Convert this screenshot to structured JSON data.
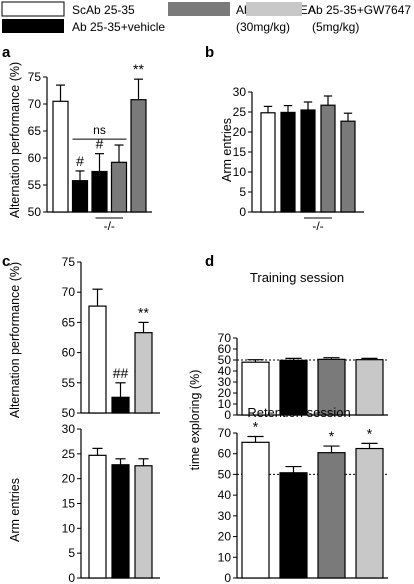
{
  "legend": [
    {
      "label": "ScAb 25-35",
      "color": "#ffffff"
    },
    {
      "label": "Ab 25-35+vehicle",
      "color": "#000000"
    },
    {
      "label": "Ab 25-35+PEA",
      "sublabel": "(30mg/kg)",
      "color": "#7a7a7a"
    },
    {
      "label": "Ab 25-35+GW7647",
      "sublabel": "(5mg/kg)",
      "color": "#c8c8c8"
    }
  ],
  "chart_data": [
    {
      "panel": "a",
      "type": "bar",
      "ylabel": "Alternation performance (%)",
      "ylim": [
        50,
        75
      ],
      "yticks": [
        50,
        55,
        60,
        65,
        70,
        75
      ],
      "values": [
        70.5,
        55.8,
        57.5,
        59.2,
        70.8
      ],
      "errors": [
        3.0,
        1.8,
        3.3,
        3.2,
        3.8
      ],
      "colors": [
        "#ffffff",
        "#000000",
        "#000000",
        "#7a7a7a",
        "#7a7a7a"
      ],
      "bar_labels": [
        "",
        "#",
        "#",
        "",
        "**"
      ],
      "ns_label": "ns",
      "group_label": "-/-"
    },
    {
      "panel": "b",
      "type": "bar",
      "ylabel": "Arm entries",
      "ylim": [
        0,
        30
      ],
      "yticks": [
        0,
        5,
        10,
        15,
        20,
        25,
        30
      ],
      "values": [
        24.8,
        24.9,
        25.5,
        26.7,
        22.7
      ],
      "errors": [
        1.6,
        1.7,
        2.0,
        2.3,
        2.0
      ],
      "colors": [
        "#ffffff",
        "#000000",
        "#000000",
        "#7a7a7a",
        "#7a7a7a"
      ],
      "group_label": "-/-"
    },
    {
      "panel": "c",
      "type": "bar",
      "ylabel": "Alternation performance (%)",
      "ylim": [
        50,
        75
      ],
      "yticks": [
        50,
        55,
        60,
        65,
        70,
        75
      ],
      "values": [
        67.7,
        52.6,
        63.3
      ],
      "errors": [
        2.8,
        2.4,
        1.7
      ],
      "colors": [
        "#ffffff",
        "#000000",
        "#c8c8c8"
      ],
      "bar_labels": [
        "",
        "##",
        "**"
      ]
    },
    {
      "panel": "c",
      "type": "bar",
      "ylabel": "Arm entries",
      "ylim": [
        0,
        30
      ],
      "yticks": [
        0,
        5,
        10,
        15,
        20,
        25,
        30
      ],
      "values": [
        24.7,
        22.8,
        22.6
      ],
      "errors": [
        1.4,
        1.2,
        1.4
      ],
      "colors": [
        "#ffffff",
        "#000000",
        "#c8c8c8"
      ]
    },
    {
      "panel": "d",
      "type": "bar",
      "title": "Training session",
      "ylabel": "time exploring (%)",
      "ylim": [
        0,
        70
      ],
      "yticks": [
        0,
        10,
        20,
        30,
        40,
        50,
        60,
        70
      ],
      "reference_line": 50,
      "values": [
        48.0,
        49.7,
        50.6,
        50.3
      ],
      "errors": [
        2.3,
        1.8,
        1.5,
        1.2
      ],
      "colors": [
        "#ffffff",
        "#000000",
        "#7a7a7a",
        "#c8c8c8"
      ]
    },
    {
      "panel": "d",
      "type": "bar",
      "title": "Retention session",
      "ylim": [
        0,
        70
      ],
      "yticks": [
        0,
        10,
        20,
        30,
        40,
        50,
        60,
        70
      ],
      "reference_line": 50,
      "values": [
        65.5,
        50.8,
        60.5,
        62.5
      ],
      "errors": [
        2.8,
        3.0,
        3.2,
        2.5
      ],
      "colors": [
        "#ffffff",
        "#000000",
        "#7a7a7a",
        "#c8c8c8"
      ],
      "bar_labels": [
        "*",
        "",
        "*",
        "*"
      ]
    }
  ]
}
